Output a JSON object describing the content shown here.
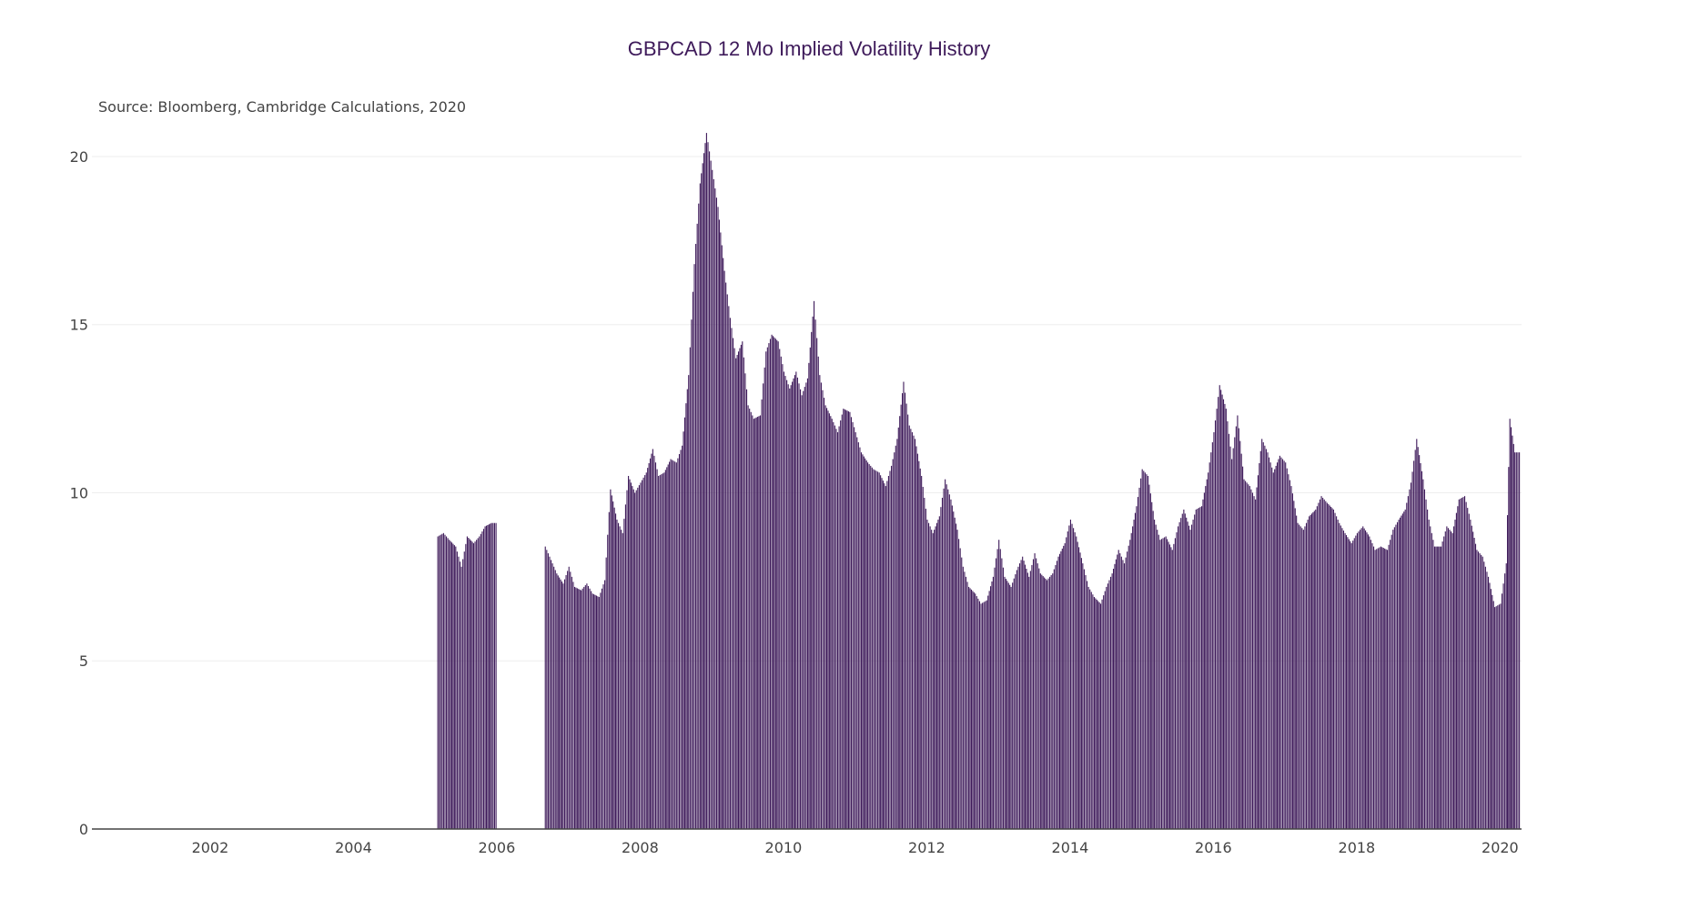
{
  "chart_data": {
    "type": "bar",
    "title": "GBPCAD 12 Mo Implied Volatility History",
    "subtitle": "Source: Bloomberg, Cambridge Calculations, 2020",
    "xlabel": "",
    "ylabel": "",
    "xlim": [
      2000.35,
      2020.3
    ],
    "ylim": [
      0,
      21
    ],
    "y_ticks": [
      0,
      5,
      10,
      15,
      20
    ],
    "x_ticks": [
      2002,
      2004,
      2006,
      2008,
      2010,
      2012,
      2014,
      2016,
      2018,
      2020
    ],
    "grid": true,
    "legend": "none",
    "bar_color": "#3e1a5a",
    "bar_width_years": 0.0192,
    "series": [
      {
        "name": "",
        "points": [
          [
            2005.17,
            8.7
          ],
          [
            2005.25,
            8.8
          ],
          [
            2005.33,
            8.6
          ],
          [
            2005.42,
            8.4
          ],
          [
            2005.5,
            7.8
          ],
          [
            2005.58,
            8.7
          ],
          [
            2005.67,
            8.5
          ],
          [
            2005.75,
            8.7
          ],
          [
            2005.83,
            9.0
          ],
          [
            2005.92,
            9.1
          ],
          [
            2006.67,
            8.4
          ],
          [
            2006.75,
            8.0
          ],
          [
            2006.83,
            7.6
          ],
          [
            2006.92,
            7.3
          ],
          [
            2007.0,
            7.8
          ],
          [
            2007.08,
            7.2
          ],
          [
            2007.17,
            7.1
          ],
          [
            2007.25,
            7.3
          ],
          [
            2007.33,
            7.0
          ],
          [
            2007.42,
            6.9
          ],
          [
            2007.5,
            7.4
          ],
          [
            2007.58,
            10.1
          ],
          [
            2007.67,
            9.2
          ],
          [
            2007.75,
            8.8
          ],
          [
            2007.83,
            10.5
          ],
          [
            2007.92,
            10.0
          ],
          [
            2008.0,
            10.3
          ],
          [
            2008.08,
            10.6
          ],
          [
            2008.17,
            11.3
          ],
          [
            2008.25,
            10.5
          ],
          [
            2008.33,
            10.6
          ],
          [
            2008.42,
            11.0
          ],
          [
            2008.5,
            10.9
          ],
          [
            2008.58,
            11.4
          ],
          [
            2008.67,
            13.5
          ],
          [
            2008.75,
            16.8
          ],
          [
            2008.83,
            19.2
          ],
          [
            2008.92,
            20.7
          ],
          [
            2009.0,
            19.6
          ],
          [
            2009.08,
            18.5
          ],
          [
            2009.17,
            16.6
          ],
          [
            2009.25,
            15.2
          ],
          [
            2009.33,
            14.0
          ],
          [
            2009.42,
            14.5
          ],
          [
            2009.5,
            12.6
          ],
          [
            2009.58,
            12.2
          ],
          [
            2009.67,
            12.3
          ],
          [
            2009.75,
            14.2
          ],
          [
            2009.83,
            14.7
          ],
          [
            2009.92,
            14.5
          ],
          [
            2010.0,
            13.6
          ],
          [
            2010.08,
            13.1
          ],
          [
            2010.17,
            13.6
          ],
          [
            2010.25,
            12.9
          ],
          [
            2010.33,
            13.4
          ],
          [
            2010.42,
            15.7
          ],
          [
            2010.5,
            13.5
          ],
          [
            2010.58,
            12.6
          ],
          [
            2010.67,
            12.2
          ],
          [
            2010.75,
            11.8
          ],
          [
            2010.83,
            12.5
          ],
          [
            2010.92,
            12.4
          ],
          [
            2011.0,
            11.8
          ],
          [
            2011.08,
            11.2
          ],
          [
            2011.17,
            10.9
          ],
          [
            2011.25,
            10.7
          ],
          [
            2011.33,
            10.6
          ],
          [
            2011.42,
            10.2
          ],
          [
            2011.5,
            10.8
          ],
          [
            2011.58,
            11.6
          ],
          [
            2011.67,
            13.3
          ],
          [
            2011.75,
            12.0
          ],
          [
            2011.83,
            11.6
          ],
          [
            2011.92,
            10.5
          ],
          [
            2012.0,
            9.2
          ],
          [
            2012.08,
            8.8
          ],
          [
            2012.17,
            9.3
          ],
          [
            2012.25,
            10.4
          ],
          [
            2012.33,
            9.8
          ],
          [
            2012.42,
            8.9
          ],
          [
            2012.5,
            7.8
          ],
          [
            2012.58,
            7.2
          ],
          [
            2012.67,
            7.0
          ],
          [
            2012.75,
            6.7
          ],
          [
            2012.83,
            6.8
          ],
          [
            2012.92,
            7.5
          ],
          [
            2013.0,
            8.6
          ],
          [
            2013.08,
            7.5
          ],
          [
            2013.17,
            7.2
          ],
          [
            2013.25,
            7.7
          ],
          [
            2013.33,
            8.1
          ],
          [
            2013.42,
            7.5
          ],
          [
            2013.5,
            8.2
          ],
          [
            2013.58,
            7.6
          ],
          [
            2013.67,
            7.4
          ],
          [
            2013.75,
            7.6
          ],
          [
            2013.83,
            8.1
          ],
          [
            2013.92,
            8.5
          ],
          [
            2014.0,
            9.2
          ],
          [
            2014.08,
            8.7
          ],
          [
            2014.17,
            7.9
          ],
          [
            2014.25,
            7.2
          ],
          [
            2014.33,
            6.9
          ],
          [
            2014.42,
            6.7
          ],
          [
            2014.5,
            7.2
          ],
          [
            2014.58,
            7.6
          ],
          [
            2014.67,
            8.3
          ],
          [
            2014.75,
            7.9
          ],
          [
            2014.83,
            8.6
          ],
          [
            2014.92,
            9.6
          ],
          [
            2015.0,
            10.7
          ],
          [
            2015.08,
            10.5
          ],
          [
            2015.17,
            9.2
          ],
          [
            2015.25,
            8.6
          ],
          [
            2015.33,
            8.7
          ],
          [
            2015.42,
            8.3
          ],
          [
            2015.5,
            9.0
          ],
          [
            2015.58,
            9.5
          ],
          [
            2015.67,
            8.9
          ],
          [
            2015.75,
            9.5
          ],
          [
            2015.83,
            9.6
          ],
          [
            2015.92,
            10.6
          ],
          [
            2016.0,
            11.8
          ],
          [
            2016.08,
            13.2
          ],
          [
            2016.17,
            12.5
          ],
          [
            2016.25,
            11.0
          ],
          [
            2016.33,
            12.3
          ],
          [
            2016.42,
            10.4
          ],
          [
            2016.5,
            10.2
          ],
          [
            2016.58,
            9.8
          ],
          [
            2016.67,
            11.6
          ],
          [
            2016.75,
            11.2
          ],
          [
            2016.83,
            10.6
          ],
          [
            2016.92,
            11.1
          ],
          [
            2017.0,
            10.9
          ],
          [
            2017.08,
            10.2
          ],
          [
            2017.17,
            9.1
          ],
          [
            2017.25,
            8.9
          ],
          [
            2017.33,
            9.3
          ],
          [
            2017.42,
            9.5
          ],
          [
            2017.5,
            9.9
          ],
          [
            2017.58,
            9.7
          ],
          [
            2017.67,
            9.5
          ],
          [
            2017.75,
            9.1
          ],
          [
            2017.83,
            8.8
          ],
          [
            2017.92,
            8.5
          ],
          [
            2018.0,
            8.8
          ],
          [
            2018.08,
            9.0
          ],
          [
            2018.17,
            8.7
          ],
          [
            2018.25,
            8.3
          ],
          [
            2018.33,
            8.4
          ],
          [
            2018.42,
            8.3
          ],
          [
            2018.5,
            8.9
          ],
          [
            2018.58,
            9.2
          ],
          [
            2018.67,
            9.5
          ],
          [
            2018.75,
            10.3
          ],
          [
            2018.83,
            11.6
          ],
          [
            2018.92,
            10.4
          ],
          [
            2019.0,
            9.2
          ],
          [
            2019.08,
            8.4
          ],
          [
            2019.17,
            8.4
          ],
          [
            2019.25,
            9.0
          ],
          [
            2019.33,
            8.8
          ],
          [
            2019.42,
            9.8
          ],
          [
            2019.5,
            9.9
          ],
          [
            2019.58,
            9.2
          ],
          [
            2019.67,
            8.3
          ],
          [
            2019.75,
            8.1
          ],
          [
            2019.83,
            7.5
          ],
          [
            2019.92,
            6.6
          ],
          [
            2020.0,
            6.7
          ],
          [
            2020.08,
            7.9
          ],
          [
            2020.13,
            12.2
          ],
          [
            2020.2,
            11.2
          ]
        ]
      }
    ]
  }
}
